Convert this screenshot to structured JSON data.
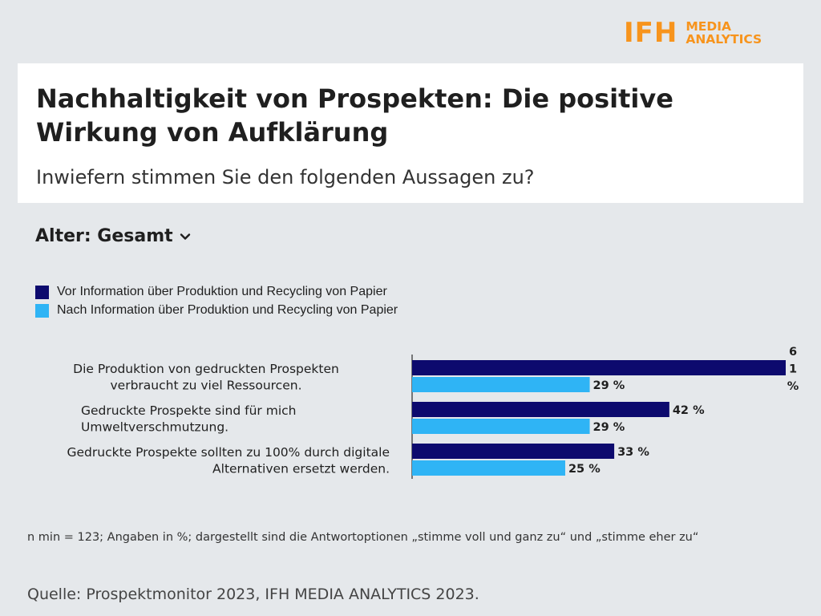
{
  "logo": {
    "mark": "IFH",
    "line1": "MEDIA",
    "line2": "ANALYTICS",
    "color": "#f7941d"
  },
  "header": {
    "title": "Nachhaltigkeit von Prospekten: Die positive Wirkung von Aufklärung",
    "subtitle": "Inwiefern stimmen Sie den folgenden Aussagen zu?"
  },
  "filter": {
    "label": "Alter: Gesamt",
    "icon": "chevron-down-icon"
  },
  "chart_data": {
    "type": "bar",
    "orientation": "horizontal",
    "categories": [
      "Die Produktion von gedruckten Prospekten verbraucht zu viel Ressourcen.",
      "Gedruckte Prospekte sind für mich Umweltverschmutzung.",
      "Gedruckte Prospekte sollten zu 100% durch digitale Alternativen ersetzt werden."
    ],
    "series": [
      {
        "name": "Vor Information über Produktion und Recycling von Papier",
        "color": "#0d0a6e",
        "values": [
          61,
          42,
          33
        ]
      },
      {
        "name": "Nach Information über Produktion und Recycling von Papier",
        "color": "#2fb4f5",
        "values": [
          29,
          29,
          25
        ]
      }
    ],
    "value_suffix": " %",
    "xlim": [
      0,
      61
    ],
    "grid": false,
    "legend_position": "top-left"
  },
  "footer": {
    "note": "n min = 123; Angaben in %; dargestellt sind die Antwortoptionen „stimme voll und ganz zu“ und „stimme eher zu“",
    "source": "Quelle: Prospektmonitor 2023, IFH MEDIA ANALYTICS 2023."
  }
}
